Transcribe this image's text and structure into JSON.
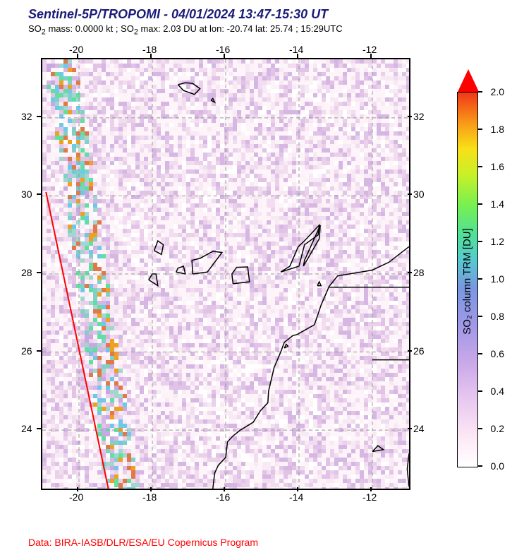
{
  "title": "Sentinel-5P/TROPOMI - 04/01/2024 13:47-15:30 UT",
  "subtitle_parts": {
    "so2_mass_label": "SO",
    "so2_mass_sub": "2",
    "so2_mass_text": " mass: 0.0000 kt ; SO",
    "so2_max_sub": "2",
    "so2_max_text": " max: 2.03 DU at lon: -20.74 lat: 25.74 ; 15:29UTC"
  },
  "footer": "Data: BIRA-IASB/DLR/ESA/EU Copernicus Program",
  "map": {
    "lon_range": [
      -21,
      -11
    ],
    "lat_range": [
      22.5,
      33.5
    ],
    "lon_ticks": [
      -20,
      -18,
      -16,
      -14,
      -12
    ],
    "lat_ticks": [
      24,
      26,
      28,
      30,
      32
    ],
    "grid_dash": "5,4",
    "grid_color": "#999999",
    "swath_line_color": "#ff0000",
    "swath_line": [
      [
        -20.9,
        30.1
      ],
      [
        -19.2,
        22.5
      ]
    ],
    "coastline_color": "#000000",
    "coastlines": [
      [
        [
          -17.3,
          32.85
        ],
        [
          -17.15,
          32.7
        ],
        [
          -16.85,
          32.6
        ],
        [
          -16.7,
          32.75
        ],
        [
          -16.9,
          32.88
        ],
        [
          -17.1,
          32.9
        ],
        [
          -17.3,
          32.85
        ]
      ],
      [
        [
          -16.4,
          32.45
        ],
        [
          -16.3,
          32.4
        ],
        [
          -16.35,
          32.5
        ],
        [
          -16.4,
          32.45
        ]
      ],
      [
        [
          -18.1,
          27.85
        ],
        [
          -17.85,
          27.7
        ],
        [
          -17.9,
          28.0
        ],
        [
          -18.0,
          28.0
        ],
        [
          -18.1,
          27.85
        ]
      ],
      [
        [
          -17.95,
          28.6
        ],
        [
          -17.75,
          28.5
        ],
        [
          -17.7,
          28.75
        ],
        [
          -17.85,
          28.85
        ],
        [
          -17.95,
          28.6
        ]
      ],
      [
        [
          -17.35,
          28.05
        ],
        [
          -17.1,
          28.0
        ],
        [
          -17.15,
          28.2
        ],
        [
          -17.3,
          28.15
        ],
        [
          -17.35,
          28.05
        ]
      ],
      [
        [
          -16.9,
          28.0
        ],
        [
          -16.5,
          28.05
        ],
        [
          -16.1,
          28.55
        ],
        [
          -16.35,
          28.58
        ],
        [
          -16.7,
          28.4
        ],
        [
          -16.92,
          28.35
        ],
        [
          -16.9,
          28.0
        ]
      ],
      [
        [
          -15.8,
          27.75
        ],
        [
          -15.35,
          27.8
        ],
        [
          -15.4,
          28.18
        ],
        [
          -15.7,
          28.17
        ],
        [
          -15.83,
          28.0
        ],
        [
          -15.8,
          27.75
        ]
      ],
      [
        [
          -14.5,
          28.05
        ],
        [
          -14.0,
          28.2
        ],
        [
          -13.85,
          28.75
        ],
        [
          -13.48,
          29.0
        ],
        [
          -13.45,
          29.25
        ],
        [
          -13.85,
          28.85
        ],
        [
          -14.02,
          28.7
        ],
        [
          -14.25,
          28.2
        ],
        [
          -14.5,
          28.05
        ]
      ],
      [
        [
          -13.88,
          28.2
        ],
        [
          -13.45,
          28.9
        ],
        [
          -13.42,
          29.25
        ],
        [
          -13.85,
          28.35
        ],
        [
          -13.88,
          28.2
        ]
      ],
      [
        [
          -14.4,
          26.1
        ],
        [
          -14.3,
          26.15
        ],
        [
          -14.35,
          26.2
        ],
        [
          -14.4,
          26.1
        ]
      ],
      [
        [
          -13.5,
          27.7
        ],
        [
          -13.4,
          27.7
        ],
        [
          -13.45,
          27.8
        ],
        [
          -13.5,
          27.7
        ]
      ],
      [
        [
          -12.0,
          23.45
        ],
        [
          -11.7,
          23.5
        ],
        [
          -11.85,
          23.6
        ],
        [
          -12.0,
          23.45
        ]
      ],
      [
        [
          -11.0,
          28.7
        ],
        [
          -11.55,
          28.3
        ],
        [
          -12.0,
          28.1
        ],
        [
          -12.95,
          27.95
        ],
        [
          -13.18,
          27.68
        ],
        [
          -13.4,
          27.2
        ],
        [
          -13.58,
          26.7
        ],
        [
          -14.05,
          26.45
        ],
        [
          -14.17,
          26.42
        ],
        [
          -14.4,
          26.25
        ],
        [
          -14.5,
          26.0
        ],
        [
          -14.68,
          25.6
        ],
        [
          -14.83,
          25.0
        ],
        [
          -14.85,
          24.7
        ],
        [
          -15.05,
          24.5
        ],
        [
          -15.25,
          24.2
        ],
        [
          -15.6,
          24.0
        ],
        [
          -15.8,
          23.85
        ],
        [
          -15.95,
          23.7
        ],
        [
          -16.0,
          23.3
        ],
        [
          -16.2,
          23.1
        ],
        [
          -16.3,
          22.9
        ],
        [
          -16.35,
          22.5
        ]
      ],
      [
        [
          -11.0,
          22.55
        ],
        [
          -11.05,
          23.0
        ],
        [
          -11.0,
          23.4
        ]
      ],
      [
        [
          -11.0,
          25.8
        ],
        [
          -12.0,
          25.8
        ]
      ],
      [
        [
          -11.0,
          27.66
        ],
        [
          -13.17,
          27.66
        ]
      ]
    ],
    "data_noise": {
      "background": "#fdf5fa",
      "pixel_colors": [
        "#f8eaf5",
        "#f2ddf0",
        "#ead0eb",
        "#e0c3e6",
        "#d6b7e3",
        "#ffffff",
        "#fcf2f8"
      ],
      "edge_colors": [
        "#c8a8e0",
        "#a0d8d0",
        "#80d0c8",
        "#60e0a0",
        "#e07848",
        "#f0a020",
        "#70c8e8"
      ],
      "pixel_size": 6
    }
  },
  "colorbar": {
    "title": "SO₂ column TRM [DU]",
    "ticks": [
      0.0,
      0.2,
      0.4,
      0.6,
      0.8,
      1.0,
      1.2,
      1.4,
      1.6,
      1.8,
      2.0
    ],
    "range": [
      0.0,
      2.0
    ],
    "arrow_color": "#ff0000",
    "gradient": [
      {
        "stop": 0.0,
        "color": "#ffffff"
      },
      {
        "stop": 0.08,
        "color": "#fce8f5"
      },
      {
        "stop": 0.18,
        "color": "#e8c8f0"
      },
      {
        "stop": 0.28,
        "color": "#c8a8e8"
      },
      {
        "stop": 0.38,
        "color": "#a098e8"
      },
      {
        "stop": 0.48,
        "color": "#7898e0"
      },
      {
        "stop": 0.55,
        "color": "#58c8d0"
      },
      {
        "stop": 0.62,
        "color": "#50e098"
      },
      {
        "stop": 0.7,
        "color": "#78f050"
      },
      {
        "stop": 0.78,
        "color": "#c8f028"
      },
      {
        "stop": 0.85,
        "color": "#f8e018"
      },
      {
        "stop": 0.92,
        "color": "#f89818"
      },
      {
        "stop": 1.0,
        "color": "#f03818"
      }
    ]
  }
}
